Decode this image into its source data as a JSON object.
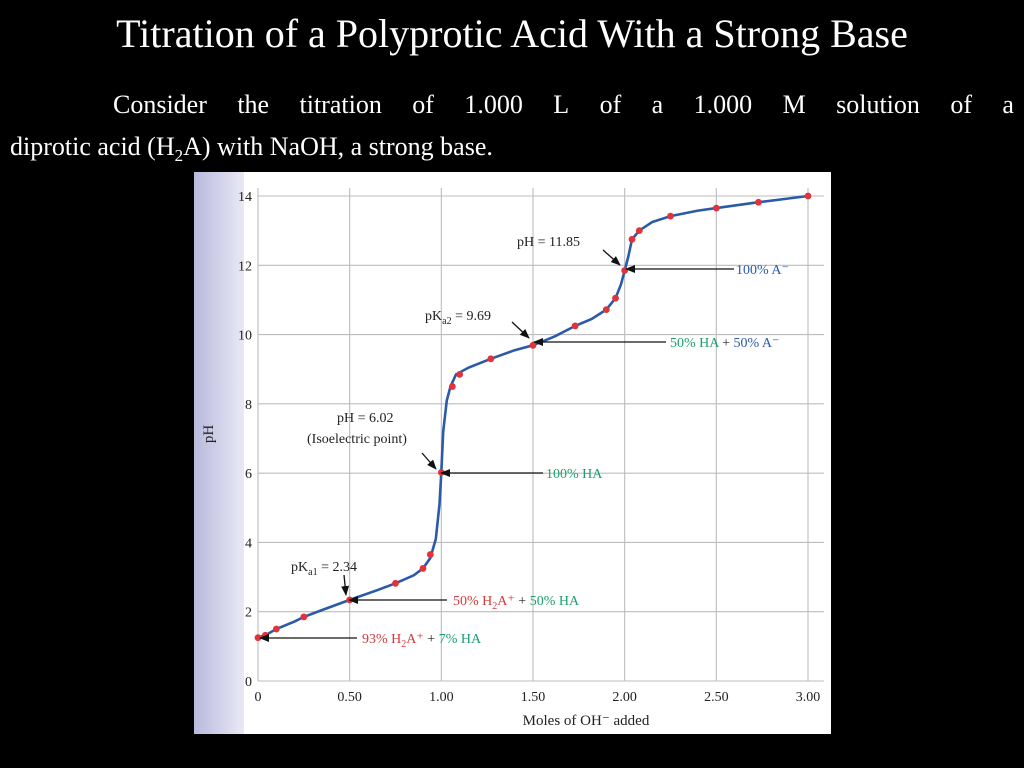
{
  "slide": {
    "title": "Titration of a Polyprotic Acid With a Strong Base",
    "para_words": [
      "Consider",
      "the",
      "titration",
      "of",
      "1.000",
      "L",
      "of",
      "a",
      "1.000",
      "M",
      "solution",
      "of",
      "a"
    ],
    "para_line2_a": "diprotic acid (H",
    "para_line2_sub": "2",
    "para_line2_b": "A) with NaOH, a strong base."
  },
  "colors": {
    "curve": "#2a5aa8",
    "points": "#e0343a",
    "grid": "#bdbdbd",
    "side_band": "#cfcfe8",
    "green_label": "#1c9e6b",
    "red_label": "#d23a3a",
    "blue_label": "#2a5aa8"
  },
  "chart_data": {
    "type": "line",
    "xlabel": "Moles of OH⁻ added",
    "ylabel": "pH",
    "xlim": [
      0,
      3.0
    ],
    "ylim": [
      0,
      14
    ],
    "x_ticks": [
      "0",
      "0.50",
      "1.00",
      "1.50",
      "2.00",
      "2.50",
      "3.00"
    ],
    "y_ticks": [
      "0",
      "2",
      "4",
      "6",
      "8",
      "10",
      "12",
      "14"
    ],
    "grid": true,
    "curve": [
      [
        0.0,
        1.25
      ],
      [
        0.05,
        1.35
      ],
      [
        0.1,
        1.5
      ],
      [
        0.2,
        1.72
      ],
      [
        0.25,
        1.85
      ],
      [
        0.35,
        2.05
      ],
      [
        0.5,
        2.34
      ],
      [
        0.65,
        2.62
      ],
      [
        0.75,
        2.82
      ],
      [
        0.85,
        3.05
      ],
      [
        0.9,
        3.25
      ],
      [
        0.94,
        3.55
      ],
      [
        0.97,
        4.1
      ],
      [
        0.99,
        5.1
      ],
      [
        1.0,
        6.02
      ],
      [
        1.01,
        7.2
      ],
      [
        1.03,
        8.1
      ],
      [
        1.05,
        8.5
      ],
      [
        1.08,
        8.85
      ],
      [
        1.15,
        9.05
      ],
      [
        1.27,
        9.3
      ],
      [
        1.4,
        9.55
      ],
      [
        1.5,
        9.69
      ],
      [
        1.62,
        9.95
      ],
      [
        1.73,
        10.25
      ],
      [
        1.82,
        10.45
      ],
      [
        1.9,
        10.72
      ],
      [
        1.95,
        11.05
      ],
      [
        1.98,
        11.45
      ],
      [
        2.0,
        11.85
      ],
      [
        2.02,
        12.25
      ],
      [
        2.04,
        12.75
      ],
      [
        2.08,
        13.0
      ],
      [
        2.15,
        13.25
      ],
      [
        2.25,
        13.42
      ],
      [
        2.4,
        13.58
      ],
      [
        2.5,
        13.65
      ],
      [
        2.73,
        13.82
      ],
      [
        2.85,
        13.9
      ],
      [
        3.0,
        14.0
      ]
    ],
    "points": [
      [
        0.0,
        1.25
      ],
      [
        0.04,
        1.32
      ],
      [
        0.1,
        1.5
      ],
      [
        0.25,
        1.85
      ],
      [
        0.5,
        2.34
      ],
      [
        0.75,
        2.82
      ],
      [
        0.9,
        3.25
      ],
      [
        0.94,
        3.65
      ],
      [
        1.0,
        6.02
      ],
      [
        1.06,
        8.5
      ],
      [
        1.1,
        8.85
      ],
      [
        1.27,
        9.3
      ],
      [
        1.5,
        9.69
      ],
      [
        1.73,
        10.25
      ],
      [
        1.9,
        10.72
      ],
      [
        1.95,
        11.05
      ],
      [
        2.0,
        11.85
      ],
      [
        2.04,
        12.75
      ],
      [
        2.08,
        13.0
      ],
      [
        2.25,
        13.42
      ],
      [
        2.5,
        13.65
      ],
      [
        2.73,
        13.82
      ],
      [
        3.0,
        14.0
      ]
    ],
    "annotations": {
      "ph1185": "pH = 11.85",
      "pka2_label": "pK",
      "pka2_sub": "a2",
      "pka2_value": " = 9.69",
      "ph602": "pH = 6.02",
      "isoelectric": "(Isoelectric point)",
      "pka1_label": "pK",
      "pka1_sub": "a1",
      "pka1_value": " = 2.34"
    },
    "labels": {
      "a_minus": "100% A⁻",
      "ha_a_left": "50% HA",
      "ha_a_plus": " + ",
      "ha_a_right": "50% A⁻",
      "ha100": "100% HA",
      "h2a_left_a": "50% H",
      "h2a_left_sub": "2",
      "h2a_left_b": "A⁺",
      "h2a_plus": " + ",
      "h2a_right": "50% HA",
      "h2a93_a": "93% H",
      "h2a93_sub": "2",
      "h2a93_b": "A⁺",
      "h2a93_plus": " + ",
      "h2a93_right": "7% HA"
    }
  }
}
